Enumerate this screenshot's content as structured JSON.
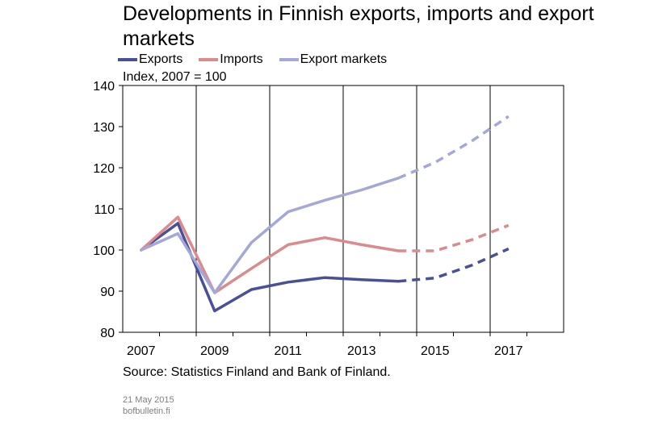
{
  "chart_data": {
    "type": "line",
    "title": "Developments in Finnish exports, imports and export markets",
    "unit_label": "Index, 2007 = 100",
    "ylim": [
      80,
      140
    ],
    "yticks": [
      80,
      90,
      100,
      110,
      120,
      130,
      140
    ],
    "xlim": [
      2006.5,
      2018.5
    ],
    "xticks_labeled": [
      2007,
      2009,
      2011,
      2013,
      2015,
      2017
    ],
    "x": [
      2007,
      2008,
      2009,
      2010,
      2011,
      2012,
      2013,
      2014,
      2015,
      2016,
      2017
    ],
    "forecast_from": 2014,
    "grid": "vertical",
    "legend_position": "top",
    "series": [
      {
        "name": "Exports",
        "color": "#4a4f99",
        "values": [
          100,
          106.5,
          85.2,
          90.4,
          92.2,
          93.3,
          92.8,
          92.4,
          93.2,
          96.3,
          100.3
        ]
      },
      {
        "name": "Imports",
        "color": "#d98b8e",
        "values": [
          100,
          108,
          89.6,
          95.5,
          101.3,
          103,
          101.3,
          99.8,
          99.8,
          102.5,
          106
        ]
      },
      {
        "name": "Export markets",
        "color": "#a4a8d8",
        "values": [
          100,
          104,
          89.6,
          101.8,
          109.3,
          112.1,
          114.6,
          117.5,
          121.3,
          126.5,
          132.5
        ]
      }
    ]
  },
  "footer": {
    "source": "Source: Statistics Finland and Bank of Finland.",
    "date": "21 May 2015",
    "site": "bofbulletin.fi"
  }
}
